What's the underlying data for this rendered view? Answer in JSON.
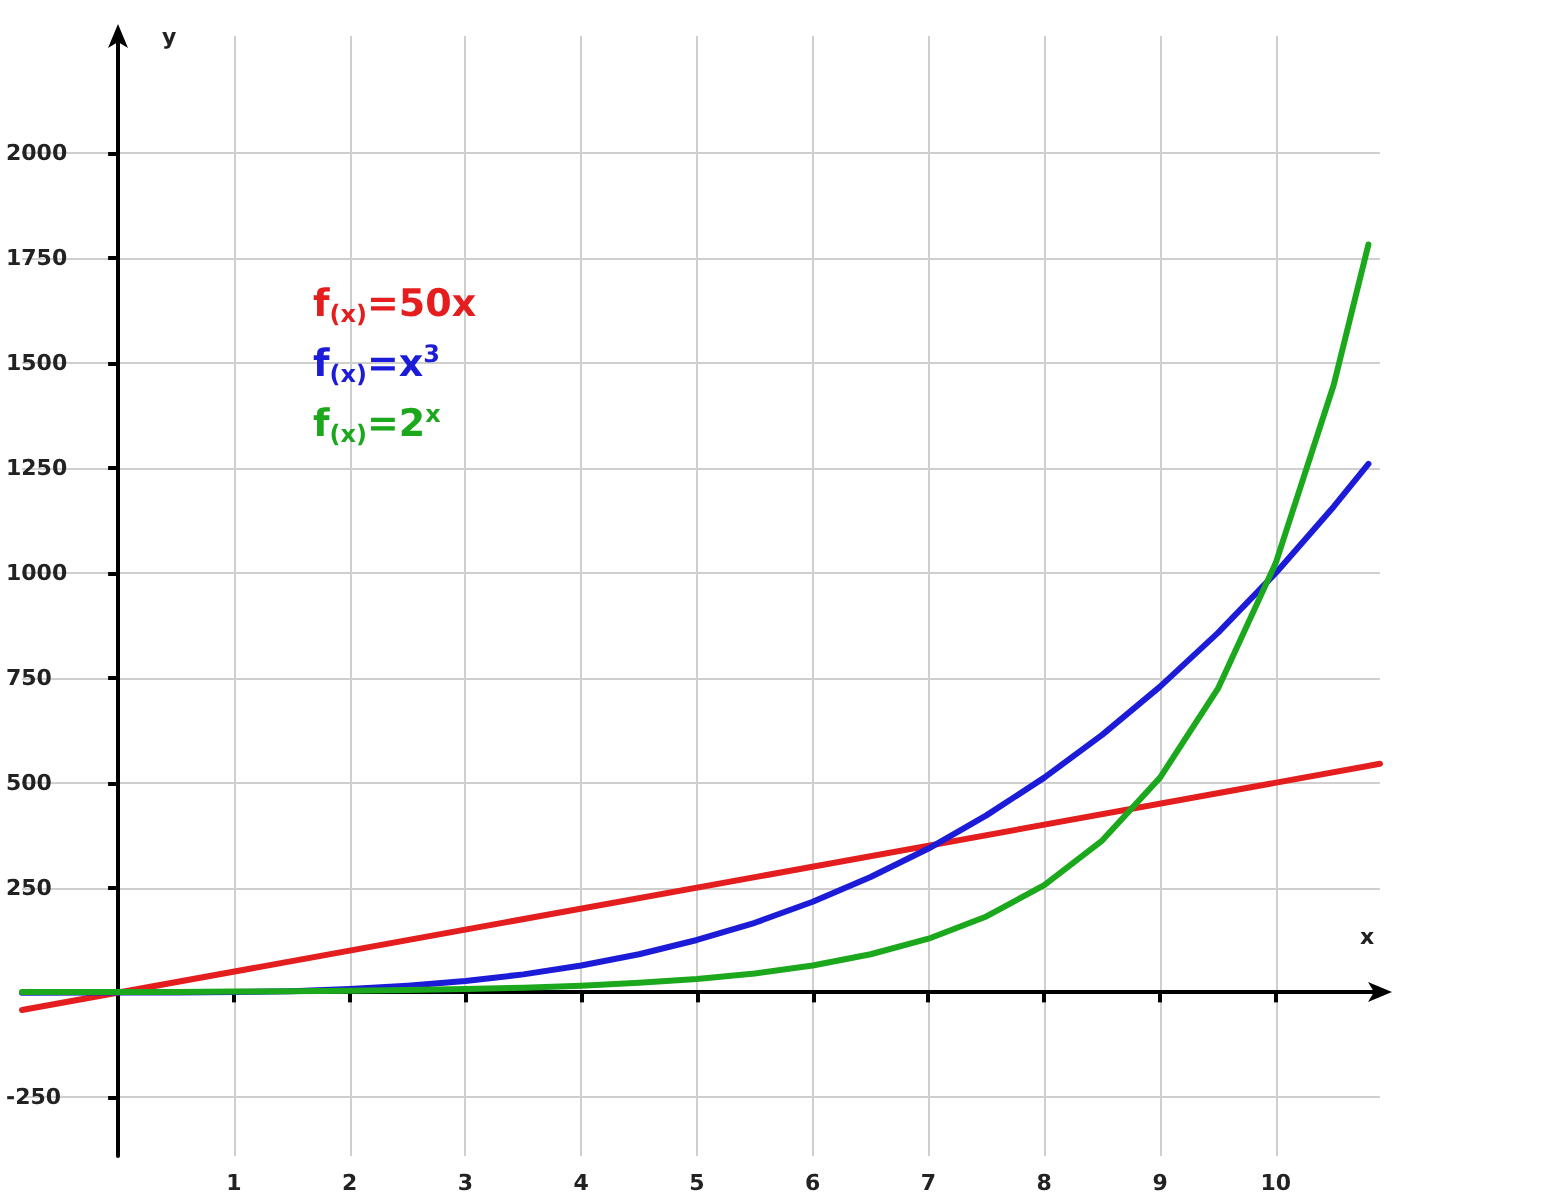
{
  "chart_data": {
    "type": "line",
    "xlabel": "x",
    "ylabel": "y",
    "xlim": [
      -0.83,
      10.9
    ],
    "ylim": [
      -390,
      2280
    ],
    "xticks": [
      1,
      2,
      3,
      4,
      5,
      6,
      7,
      8,
      9,
      10
    ],
    "yticks": [
      -250,
      250,
      500,
      750,
      1000,
      1250,
      1500,
      1750,
      2000
    ],
    "grid": true,
    "legend": "top left",
    "marker": "none",
    "line_style": "solid",
    "series": [
      {
        "name": "f$_{(x)}$=50x",
        "color": "#e41e1e",
        "x": [
          -0.83,
          10.9
        ],
        "values": [
          -42,
          545
        ]
      },
      {
        "name": "f$_{(x)}$=x$^{3}$",
        "color": "#1c1cd8",
        "x": [
          -0.83,
          0,
          0.5,
          1,
          1.5,
          2,
          2.5,
          3,
          3.5,
          4,
          4.5,
          5,
          5.5,
          6,
          6.5,
          7,
          7.5,
          8,
          8.5,
          9,
          9.5,
          10,
          10.5,
          10.8
        ],
        "values": [
          -1,
          0,
          0,
          1,
          3,
          8,
          16,
          27,
          43,
          64,
          91,
          125,
          166,
          216,
          275,
          343,
          422,
          512,
          614,
          729,
          857,
          1000,
          1158,
          1260
        ]
      },
      {
        "name": "f$_{(x)}$=2$^{x}$",
        "color": "#1ca81c",
        "x": [
          -0.83,
          0,
          0.5,
          1,
          1.5,
          2,
          2.5,
          3,
          3.5,
          4,
          4.5,
          5,
          5.5,
          6,
          6.5,
          7,
          7.5,
          8,
          8.5,
          9,
          9.5,
          10,
          10.5,
          10.8
        ],
        "values": [
          1,
          1,
          1,
          2,
          3,
          4,
          6,
          8,
          11,
          16,
          23,
          32,
          45,
          64,
          91,
          128,
          181,
          256,
          362,
          512,
          724,
          1024,
          1448,
          1783
        ]
      }
    ]
  }
}
